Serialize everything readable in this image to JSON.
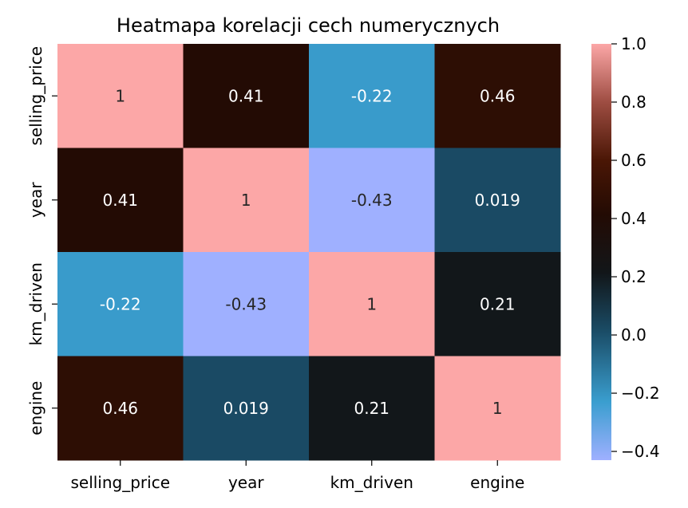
{
  "chart_data": {
    "type": "heatmap",
    "title": "Heatmapa korelacji cech numerycznych",
    "rows": [
      "selling_price",
      "year",
      "km_driven",
      "engine"
    ],
    "columns": [
      "selling_price",
      "year",
      "km_driven",
      "engine"
    ],
    "values": [
      [
        1,
        0.41,
        -0.22,
        0.46
      ],
      [
        0.41,
        1,
        -0.43,
        0.019
      ],
      [
        -0.22,
        -0.43,
        1,
        0.21
      ],
      [
        0.46,
        0.019,
        0.21,
        1
      ]
    ],
    "cell_labels": [
      [
        "1",
        "0.41",
        "-0.22",
        "0.46"
      ],
      [
        "0.41",
        "1",
        "-0.43",
        "0.019"
      ],
      [
        "-0.22",
        "-0.43",
        "1",
        "0.21"
      ],
      [
        "0.46",
        "0.019",
        "0.21",
        "1"
      ]
    ],
    "colorbar": {
      "range": [
        -0.43,
        1.0
      ],
      "ticks": [
        1.0,
        0.8,
        0.6,
        0.4,
        0.2,
        0.0,
        -0.2,
        -0.4
      ],
      "tick_labels": [
        "1.0",
        "0.8",
        "0.6",
        "0.4",
        "0.2",
        "0.0",
        "−0.2",
        "−0.4"
      ],
      "colormap": "berlin",
      "color_stops": [
        [
          0.0,
          "#9fb0ff"
        ],
        [
          0.14,
          "#3a9ecf"
        ],
        [
          0.31,
          "#1a4c66"
        ],
        [
          0.45,
          "#121619"
        ],
        [
          0.59,
          "#230b04"
        ],
        [
          0.72,
          "#4a1605"
        ],
        [
          0.86,
          "#9e4d42"
        ],
        [
          1.0,
          "#fca7a7"
        ]
      ]
    }
  }
}
